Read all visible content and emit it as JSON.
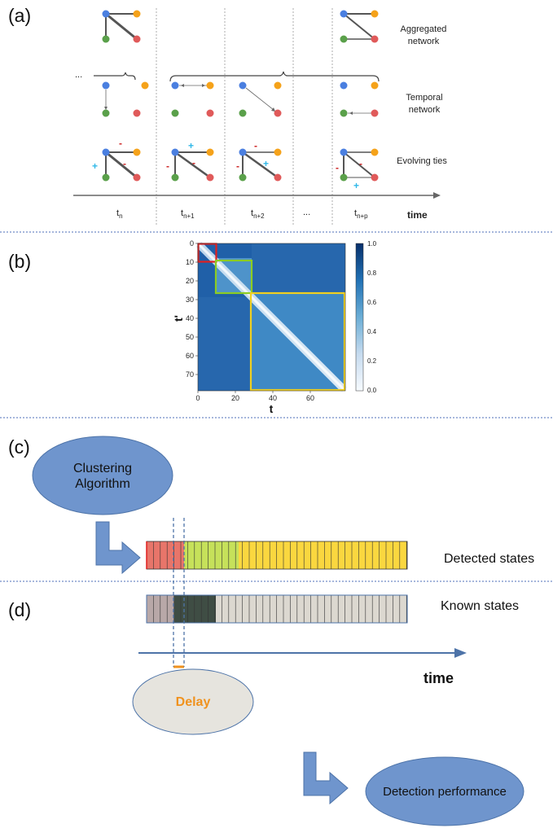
{
  "panel_a": {
    "label": "(a)",
    "rows": {
      "aggregated": "Aggregated network",
      "temporal": "Temporal network",
      "evolving": "Evolving ties"
    },
    "ellipsis_left": "...",
    "ellipsis_mid": "...",
    "timepoints": [
      {
        "base": "t",
        "sub": "n"
      },
      {
        "base": "t",
        "sub": "n+1"
      },
      {
        "base": "t",
        "sub": "n+2"
      },
      {
        "base": "t",
        "sub": "n+p"
      }
    ],
    "axis_label": "time",
    "node_colors": {
      "blue": "#4a7fe0",
      "orange": "#f5a21a",
      "green": "#5aa04a",
      "red": "#e05a5a"
    },
    "sign_colors": {
      "plus": "#30b8e8",
      "minus": "#cc2222"
    }
  },
  "panel_b": {
    "label": "(b)",
    "xlabel": "t",
    "ylabel": "t'",
    "x_ticks": [
      "0",
      "20",
      "40",
      "60"
    ],
    "y_ticks": [
      "0",
      "10",
      "20",
      "30",
      "40",
      "50",
      "60",
      "70"
    ],
    "colorbar_ticks": [
      "0.0",
      "0.2",
      "0.4",
      "0.6",
      "0.8",
      "1.0"
    ],
    "box_colors": [
      "#e02020",
      "#8ccc22",
      "#f0d020"
    ]
  },
  "panel_c": {
    "label": "(c)",
    "algorithm": "Clustering Algorithm",
    "detected_states": "Detected states",
    "state_colors": [
      "#e8756a",
      "#c6e15a",
      "#fad73f"
    ]
  },
  "panel_d": {
    "label": "(d)",
    "known_states": "Known states",
    "time": "time",
    "delay": "Delay",
    "detection_performance": "Detection performance",
    "state_colors": [
      "#b8a8a8",
      "#3f4d44",
      "#dcd8d0"
    ],
    "delay_color": "#f0921e"
  }
}
